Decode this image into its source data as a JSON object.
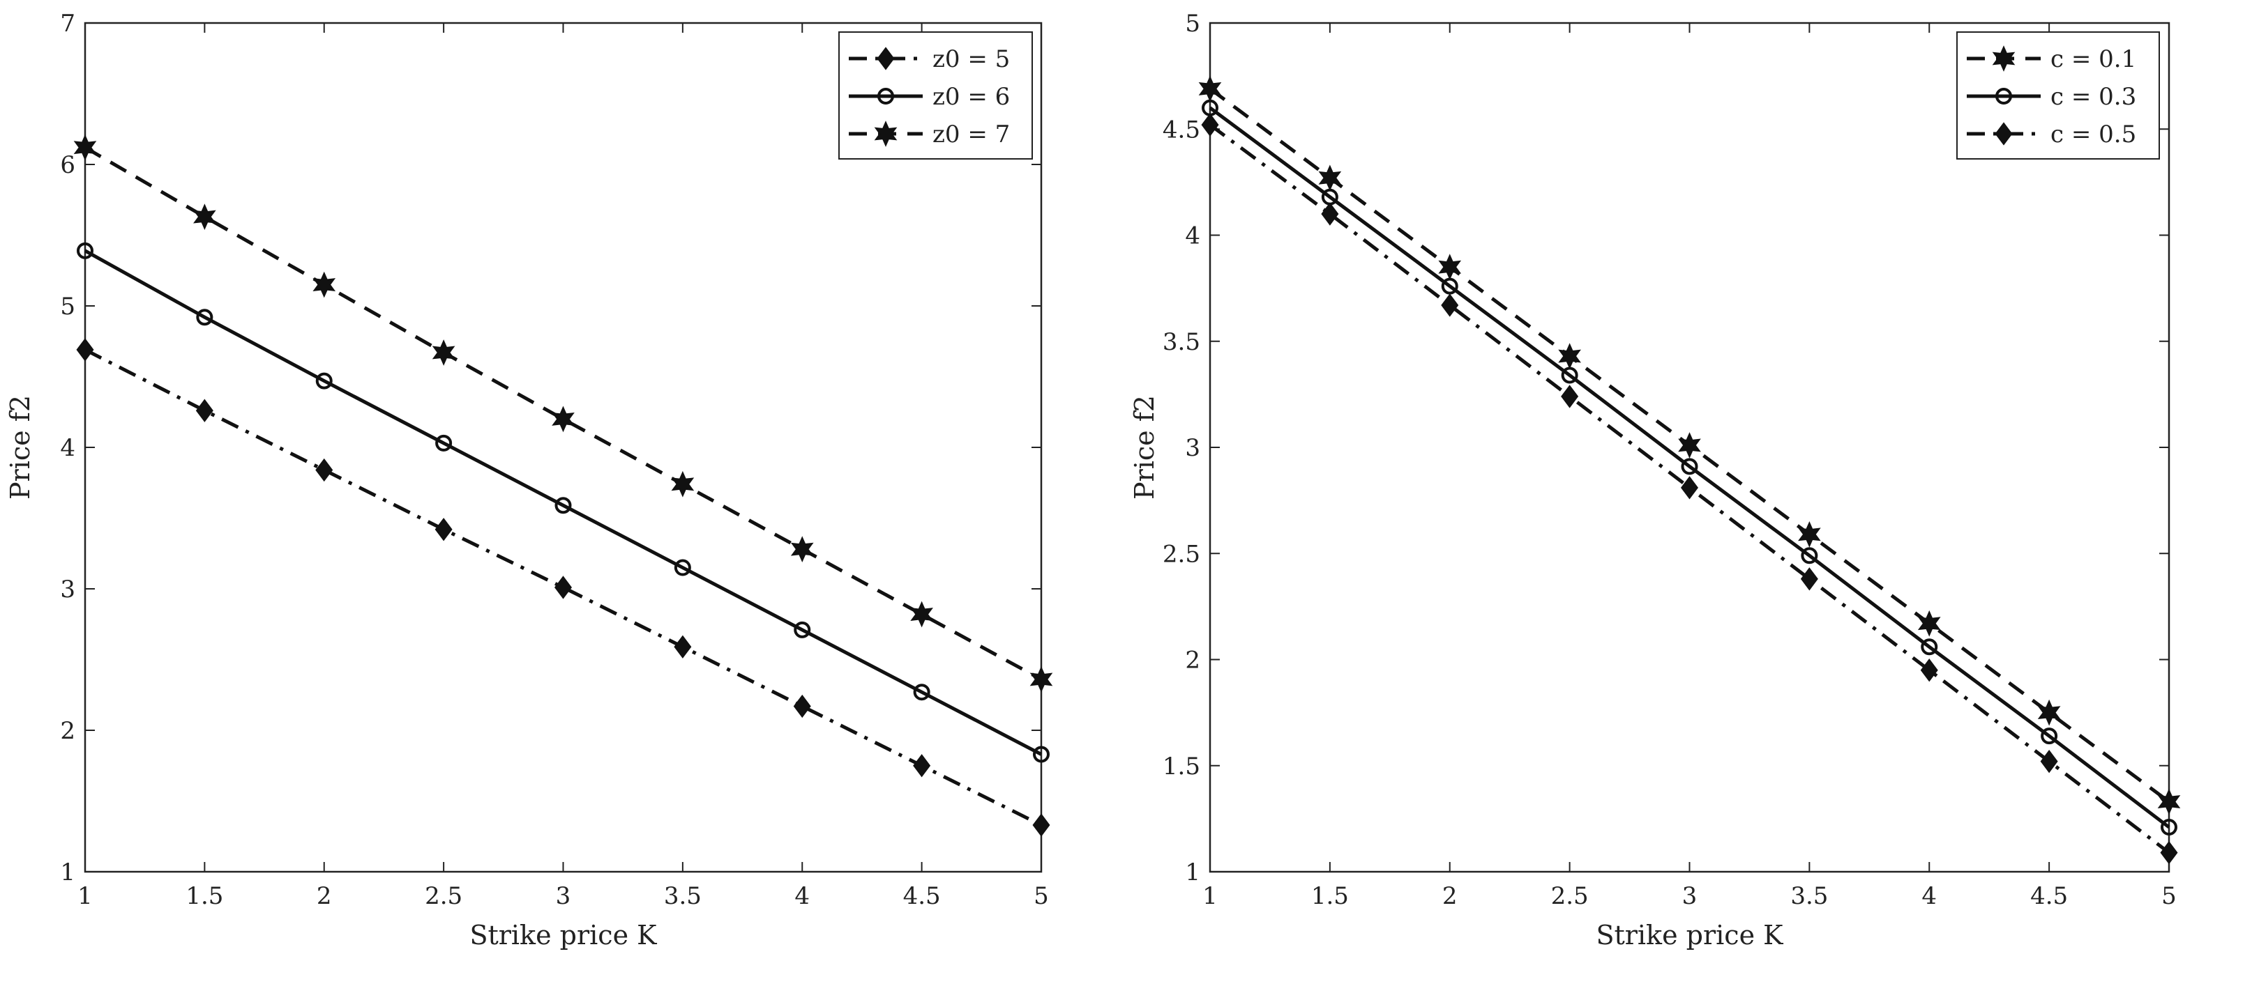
{
  "chart_data": [
    {
      "type": "line",
      "xlabel": "Strike price K",
      "ylabel": "Price f2",
      "xlim": [
        1,
        5
      ],
      "ylim": [
        1,
        7
      ],
      "xticks": [
        "1",
        "1.5",
        "2",
        "2.5",
        "3",
        "3.5",
        "4",
        "4.5",
        "5"
      ],
      "yticks": [
        "1",
        "2",
        "3",
        "4",
        "5",
        "6",
        "7"
      ],
      "grid": false,
      "legend_position": "top-right",
      "x": [
        1,
        1.5,
        2,
        2.5,
        3,
        3.5,
        4,
        4.5,
        5
      ],
      "series": [
        {
          "name": "z0 = 5",
          "line_style": "dash-dot",
          "marker": "diamond",
          "values": [
            4.69,
            4.26,
            3.84,
            3.42,
            3.01,
            2.59,
            2.17,
            1.75,
            1.33
          ]
        },
        {
          "name": "z0 = 6",
          "line_style": "solid",
          "marker": "circle",
          "values": [
            5.39,
            4.92,
            4.47,
            4.03,
            3.59,
            3.15,
            2.71,
            2.27,
            1.83
          ]
        },
        {
          "name": "z0 = 7",
          "line_style": "dashed",
          "marker": "hexagram",
          "values": [
            6.12,
            5.63,
            5.15,
            4.67,
            4.2,
            3.74,
            3.28,
            2.82,
            2.36
          ]
        }
      ]
    },
    {
      "type": "line",
      "xlabel": "Strike price K",
      "ylabel": "Price f2",
      "xlim": [
        1,
        5
      ],
      "ylim": [
        1,
        5
      ],
      "xticks": [
        "1",
        "1.5",
        "2",
        "2.5",
        "3",
        "3.5",
        "4",
        "4.5",
        "5"
      ],
      "yticks": [
        "1",
        "1.5",
        "2",
        "2.5",
        "3",
        "3.5",
        "4",
        "4.5",
        "5"
      ],
      "grid": false,
      "legend_position": "top-right",
      "x": [
        1,
        1.5,
        2,
        2.5,
        3,
        3.5,
        4,
        4.5,
        5
      ],
      "series": [
        {
          "name": "c = 0.1",
          "line_style": "dashed",
          "marker": "hexagram",
          "values": [
            4.69,
            4.27,
            3.85,
            3.43,
            3.01,
            2.59,
            2.17,
            1.75,
            1.33
          ]
        },
        {
          "name": "c = 0.3",
          "line_style": "solid",
          "marker": "circle",
          "values": [
            4.6,
            4.18,
            3.76,
            3.34,
            2.91,
            2.49,
            2.06,
            1.64,
            1.21
          ]
        },
        {
          "name": "c = 0.5",
          "line_style": "dash-dot",
          "marker": "diamond",
          "values": [
            4.52,
            4.1,
            3.67,
            3.24,
            2.81,
            2.38,
            1.95,
            1.52,
            1.09
          ]
        }
      ]
    }
  ]
}
